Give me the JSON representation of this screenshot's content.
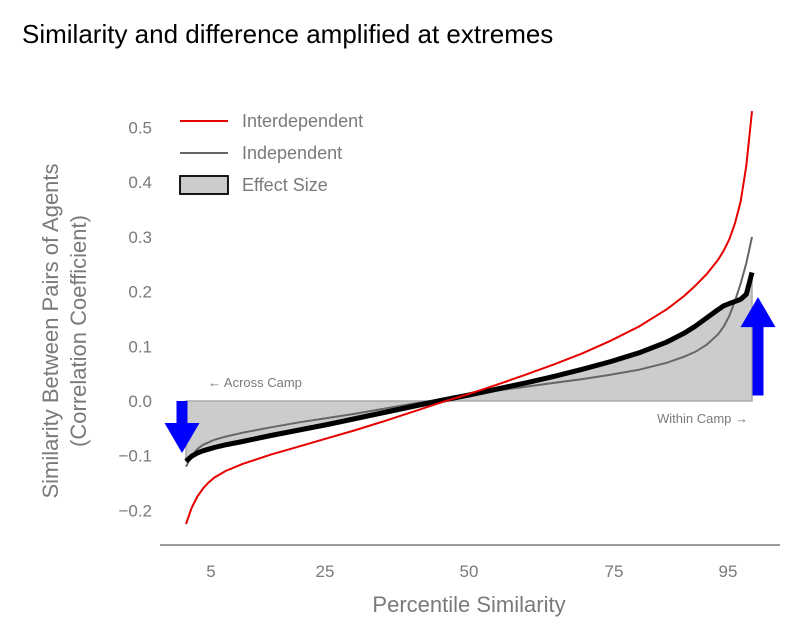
{
  "chart_data": {
    "type": "line",
    "title": "Similarity and difference amplified at extremes",
    "xlabel": "Percentile Similarity",
    "ylabel": [
      "Similarity Between Pairs of Agents",
      "(Correlation Coefficient)"
    ],
    "xlim": [
      0,
      100
    ],
    "ylim": [
      -0.26,
      0.56
    ],
    "xticks": [
      5,
      25,
      50,
      75,
      95
    ],
    "xtick_labels": [
      "5",
      "25",
      "50",
      "75",
      "95"
    ],
    "yticks": [
      -0.2,
      -0.1,
      0.0,
      0.1,
      0.2,
      0.3,
      0.4,
      0.5
    ],
    "ytick_labels": [
      "−0.2",
      "−0.1",
      "0.0",
      "0.1",
      "0.2",
      "0.3",
      "0.4",
      "0.5"
    ],
    "grid": false,
    "legend_position": "top-left",
    "legend": [
      {
        "label": "Interdependent",
        "kind": "line",
        "color": "#e60000"
      },
      {
        "label": "Independent",
        "kind": "line",
        "color": "#666666"
      },
      {
        "label": "Effect Size",
        "kind": "patch",
        "color": "#cccccc",
        "edge": "#000000"
      }
    ],
    "annotations": {
      "across": "← Across Camp",
      "within": "Within Camp →"
    },
    "series": [
      {
        "name": "Interdependent",
        "color": "#e60000",
        "x": [
          0,
          1,
          2,
          3,
          4,
          5,
          7,
          10,
          15,
          20,
          25,
          30,
          35,
          40,
          45,
          50,
          55,
          60,
          65,
          70,
          75,
          80,
          85,
          88,
          90,
          92,
          94,
          95,
          96,
          97,
          98,
          99,
          100
        ],
        "y": [
          -0.225,
          -0.195,
          -0.175,
          -0.16,
          -0.149,
          -0.14,
          -0.128,
          -0.115,
          -0.098,
          -0.083,
          -0.068,
          -0.053,
          -0.037,
          -0.02,
          -0.003,
          0.013,
          0.03,
          0.048,
          0.067,
          0.087,
          0.11,
          0.136,
          0.168,
          0.192,
          0.211,
          0.232,
          0.258,
          0.275,
          0.296,
          0.325,
          0.365,
          0.43,
          0.53
        ]
      },
      {
        "name": "Independent",
        "color": "#666666",
        "x": [
          0,
          1,
          2,
          3,
          5,
          7,
          10,
          15,
          20,
          25,
          30,
          35,
          40,
          45,
          50,
          55,
          60,
          65,
          70,
          75,
          80,
          85,
          88,
          90,
          92,
          94,
          95,
          96,
          97,
          98,
          99,
          100
        ],
        "y": [
          -0.12,
          -0.1,
          -0.088,
          -0.08,
          -0.071,
          -0.065,
          -0.058,
          -0.048,
          -0.039,
          -0.031,
          -0.023,
          -0.014,
          -0.005,
          0.003,
          0.011,
          0.019,
          0.026,
          0.033,
          0.04,
          0.048,
          0.057,
          0.07,
          0.081,
          0.09,
          0.103,
          0.122,
          0.136,
          0.156,
          0.183,
          0.215,
          0.252,
          0.3
        ]
      },
      {
        "name": "Effect Size",
        "color": "#000000",
        "x": [
          0,
          1,
          2,
          3,
          5,
          7,
          10,
          15,
          20,
          25,
          30,
          35,
          40,
          45,
          50,
          55,
          60,
          65,
          70,
          75,
          80,
          85,
          88,
          90,
          92,
          94,
          95,
          96,
          97,
          98,
          99,
          99.5,
          100
        ],
        "y": [
          -0.11,
          -0.101,
          -0.095,
          -0.091,
          -0.085,
          -0.08,
          -0.074,
          -0.063,
          -0.053,
          -0.043,
          -0.032,
          -0.021,
          -0.01,
          0.001,
          0.011,
          0.022,
          0.033,
          0.045,
          0.058,
          0.072,
          0.088,
          0.108,
          0.124,
          0.137,
          0.152,
          0.167,
          0.174,
          0.178,
          0.182,
          0.186,
          0.195,
          0.215,
          0.235
        ]
      }
    ],
    "effect_fill": {
      "color": "#cccccc",
      "edge": "#aaaaaa"
    },
    "arrows": [
      {
        "direction": "down",
        "color": "#0000ff",
        "x": 0,
        "y_from": 0.0,
        "y_to": -0.095
      },
      {
        "direction": "up",
        "color": "#0000ff",
        "x": 100,
        "y_from": 0.01,
        "y_to": 0.19
      }
    ]
  }
}
